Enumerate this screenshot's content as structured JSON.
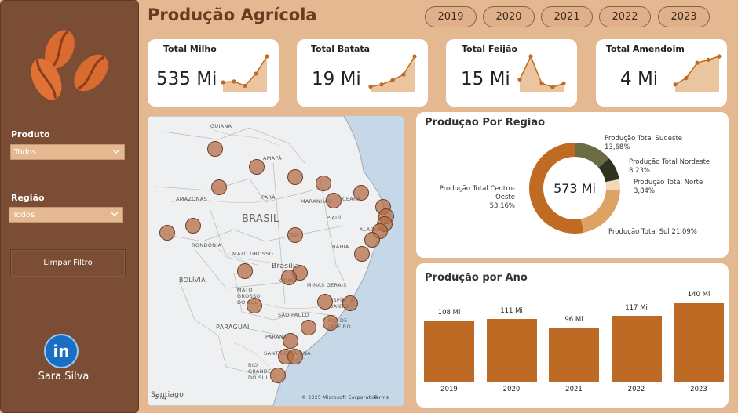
{
  "sidebar": {
    "filters": [
      {
        "label": "Produto",
        "value": "Todos"
      },
      {
        "label": "Região",
        "value": "Todos"
      }
    ],
    "clear_button": "Limpar Filtro",
    "linkedin_icon": "in",
    "author": "Sara Silva"
  },
  "header": {
    "title": "Produção Agrícola",
    "years": [
      "2019",
      "2020",
      "2021",
      "2022",
      "2023"
    ]
  },
  "kpis": [
    {
      "title": "Total Milho",
      "value": "535 Mi",
      "trend": [
        2,
        2.2,
        1.2,
        4,
        8
      ]
    },
    {
      "title": "Total Batata",
      "value": "19 Mi",
      "trend": [
        1,
        1.5,
        2.5,
        3.8,
        8
      ]
    },
    {
      "title": "Total Feijão",
      "value": "15 Mi",
      "trend": [
        3,
        9,
        2,
        1,
        2
      ]
    },
    {
      "title": "Total Amendoim",
      "value": "4 Mi",
      "trend": [
        1.5,
        3,
        6.5,
        7.2,
        8
      ]
    }
  ],
  "map": {
    "labels": {
      "guiana": "GUIANA",
      "amapa": "AMAPÁ",
      "amazonas": "AMAZONAS",
      "para": "PARÁ",
      "maranhao": "MARANHÃO",
      "ceara": "CEARÁ",
      "piaui": "PIAUÍ",
      "brasil": "BRASIL",
      "rondonia": "RONDÔNIA",
      "bahia": "BAHIA",
      "mato_grosso": "MATO GROSSO",
      "brasilia": "Brasília",
      "bolivia": "BOLÍVIA",
      "minas": "MINAS GERAIS",
      "mato_grosso_sul": "MATO GROSSO DO SUL",
      "sao_paulo": "SÃO PAULO",
      "paraguai": "PARAGUAI",
      "parana": "PARANÁ",
      "rio": "RIO DE JANEIRO",
      "espirito_santo": "ESPÍRITO SANTO",
      "santa_catarina": "SANTA CATARINA",
      "rio_grande": "RIO GRANDE DO SUL",
      "santiago": "Santiago",
      "to": "TO",
      "goias": "GOIÁS",
      "alagoas": "ALAGOAS"
    },
    "bing": "Bing",
    "copyright": "© 2025 Microsoft Corporation",
    "terms": "Terms"
  },
  "region": {
    "title": "Produção Por Região",
    "center": "573 Mi",
    "slices": [
      {
        "name": "Produção Total Sudeste",
        "pct": "13,68%",
        "value": 13.68,
        "color": "#6b6b44"
      },
      {
        "name": "Produção Total Nordeste",
        "pct": "8,23%",
        "value": 8.23,
        "color": "#2f321d"
      },
      {
        "name": "Produção Total Norte",
        "pct": "3,84%",
        "value": 3.84,
        "color": "#f4d8b8"
      },
      {
        "name": "Produção Total Sul",
        "pct": "21,09%",
        "value": 21.09,
        "color": "#dda364"
      },
      {
        "name": "Produção Total Centro-Oeste",
        "pct": "53,16%",
        "value": 53.16,
        "color": "#c06b23"
      }
    ]
  },
  "yearly": {
    "title": "Produção por Ano",
    "bar_color": "#bd6a24"
  },
  "chart_data": {
    "type": "bar",
    "title": "Produção por Ano",
    "categories": [
      "2019",
      "2020",
      "2021",
      "2022",
      "2023"
    ],
    "values": [
      108,
      111,
      96,
      117,
      140
    ],
    "data_labels": [
      "108 Mi",
      "111 Mi",
      "96 Mi",
      "117 Mi",
      "140 Mi"
    ],
    "ylim": [
      0,
      150
    ]
  }
}
